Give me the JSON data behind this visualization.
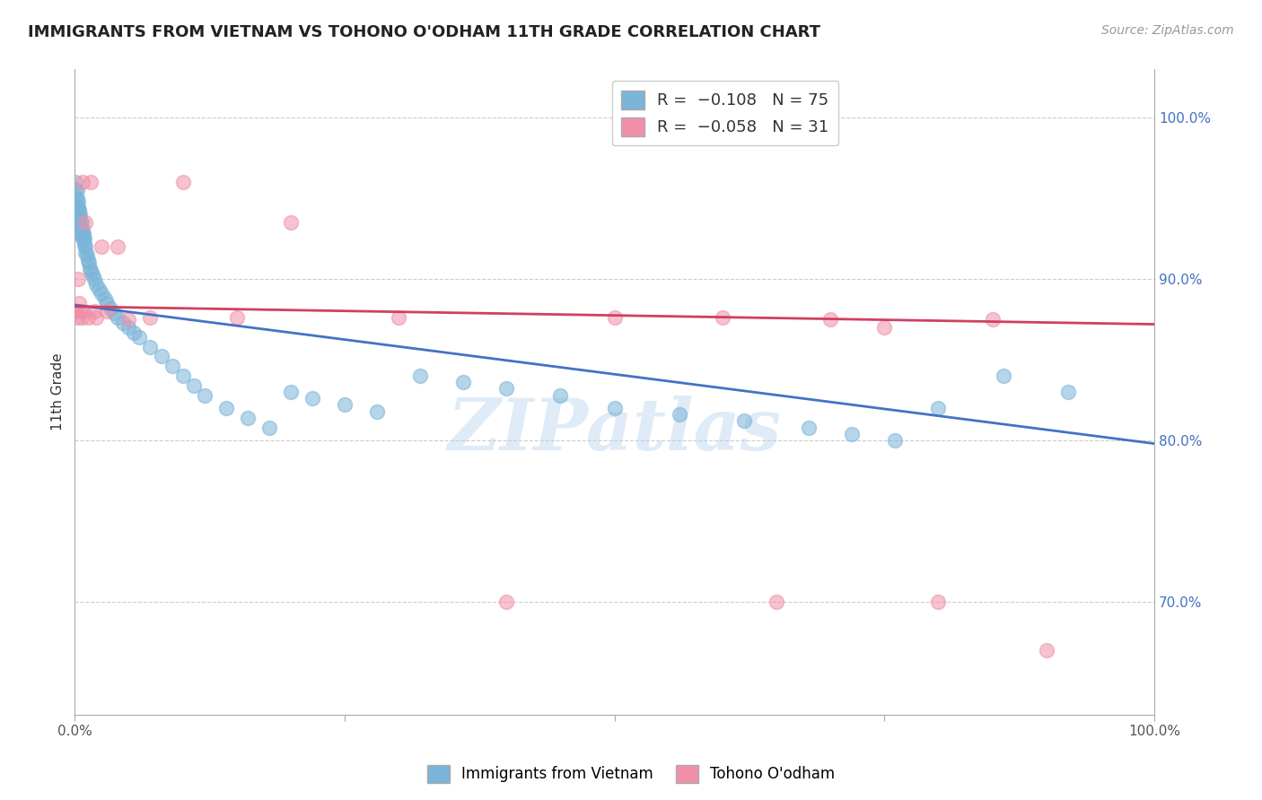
{
  "title": "IMMIGRANTS FROM VIETNAM VS TOHONO O'ODHAM 11TH GRADE CORRELATION CHART",
  "source": "Source: ZipAtlas.com",
  "ylabel": "11th Grade",
  "blue_x": [
    0.001,
    0.001,
    0.001,
    0.001,
    0.002,
    0.002,
    0.002,
    0.002,
    0.002,
    0.003,
    0.003,
    0.003,
    0.003,
    0.004,
    0.004,
    0.004,
    0.005,
    0.005,
    0.005,
    0.006,
    0.006,
    0.006,
    0.007,
    0.007,
    0.008,
    0.008,
    0.009,
    0.009,
    0.01,
    0.01,
    0.011,
    0.012,
    0.013,
    0.014,
    0.015,
    0.016,
    0.018,
    0.02,
    0.022,
    0.025,
    0.028,
    0.03,
    0.033,
    0.036,
    0.04,
    0.045,
    0.05,
    0.055,
    0.06,
    0.07,
    0.08,
    0.09,
    0.1,
    0.11,
    0.12,
    0.14,
    0.16,
    0.18,
    0.2,
    0.22,
    0.25,
    0.28,
    0.32,
    0.36,
    0.4,
    0.45,
    0.5,
    0.56,
    0.62,
    0.68,
    0.72,
    0.76,
    0.8,
    0.86,
    0.92
  ],
  "blue_y": [
    0.96,
    0.955,
    0.95,
    0.945,
    0.955,
    0.95,
    0.945,
    0.942,
    0.938,
    0.948,
    0.944,
    0.94,
    0.936,
    0.943,
    0.939,
    0.935,
    0.94,
    0.936,
    0.932,
    0.935,
    0.931,
    0.927,
    0.93,
    0.926,
    0.928,
    0.924,
    0.925,
    0.921,
    0.92,
    0.916,
    0.915,
    0.912,
    0.91,
    0.907,
    0.905,
    0.903,
    0.9,
    0.897,
    0.894,
    0.891,
    0.888,
    0.885,
    0.882,
    0.879,
    0.876,
    0.873,
    0.87,
    0.867,
    0.864,
    0.858,
    0.852,
    0.846,
    0.84,
    0.834,
    0.828,
    0.82,
    0.814,
    0.808,
    0.83,
    0.826,
    0.822,
    0.818,
    0.84,
    0.836,
    0.832,
    0.828,
    0.82,
    0.816,
    0.812,
    0.808,
    0.804,
    0.8,
    0.82,
    0.84,
    0.83
  ],
  "pink_x": [
    0.001,
    0.002,
    0.003,
    0.004,
    0.005,
    0.006,
    0.007,
    0.008,
    0.01,
    0.012,
    0.015,
    0.018,
    0.02,
    0.025,
    0.03,
    0.04,
    0.05,
    0.07,
    0.1,
    0.15,
    0.2,
    0.3,
    0.4,
    0.5,
    0.6,
    0.65,
    0.7,
    0.75,
    0.8,
    0.85,
    0.9
  ],
  "pink_y": [
    0.88,
    0.876,
    0.9,
    0.885,
    0.88,
    0.876,
    0.96,
    0.88,
    0.935,
    0.876,
    0.96,
    0.88,
    0.876,
    0.92,
    0.88,
    0.92,
    0.875,
    0.876,
    0.96,
    0.876,
    0.935,
    0.876,
    0.7,
    0.876,
    0.876,
    0.7,
    0.875,
    0.87,
    0.7,
    0.875,
    0.67
  ],
  "blue_line_x": [
    0.0,
    1.0
  ],
  "blue_line_y": [
    0.884,
    0.798
  ],
  "pink_line_x": [
    0.0,
    1.0
  ],
  "pink_line_y": [
    0.883,
    0.872
  ],
  "xlim": [
    0.0,
    1.0
  ],
  "ylim": [
    0.63,
    1.03
  ],
  "yticks": [
    0.7,
    0.8,
    0.9,
    1.0
  ],
  "ytick_labels": [
    "70.0%",
    "80.0%",
    "90.0%",
    "100.0%"
  ],
  "xtick_positions": [
    0.0,
    0.25,
    0.5,
    0.75,
    1.0
  ],
  "xtick_labels": [
    "0.0%",
    "",
    "",
    "",
    "100.0%"
  ],
  "watermark": "ZIPatlas",
  "scatter_size": 130,
  "scatter_alpha": 0.55,
  "blue_color": "#7ab4d8",
  "pink_color": "#f090a8",
  "blue_line_color": "#4472c4",
  "pink_line_color": "#d04060",
  "background_color": "#ffffff",
  "grid_color": "#cccccc",
  "title_fontsize": 13,
  "source_fontsize": 10,
  "tick_fontsize": 11,
  "ylabel_fontsize": 11
}
